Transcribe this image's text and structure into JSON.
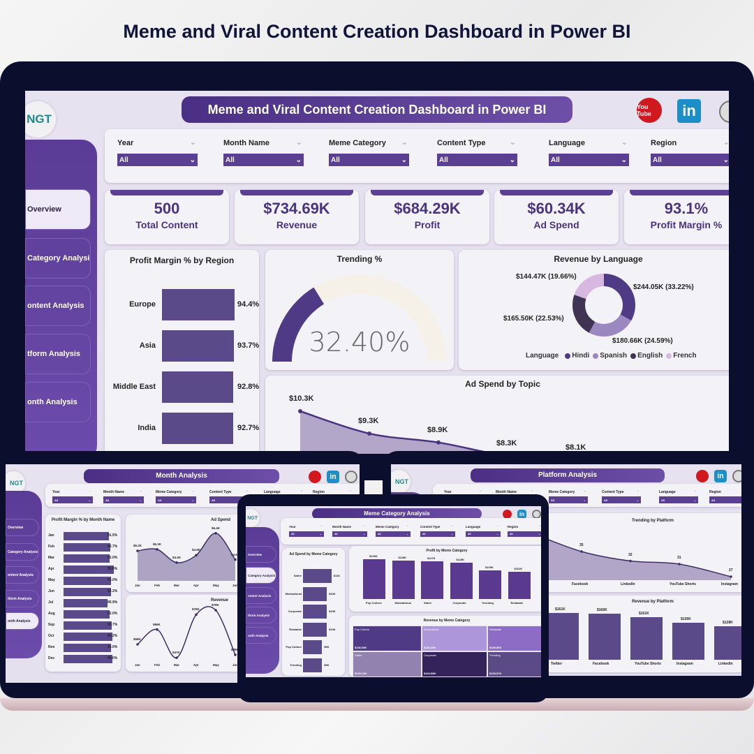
{
  "title": "Meme and Viral Content Creation Dashboard in Power BI",
  "colors": {
    "primary": "#5a3f93",
    "bar": "#5b4a8a",
    "dark": "#10143a",
    "youtube": "#d0181f",
    "linkedin": "#1d8fc8"
  },
  "common": {
    "logo": "NGT",
    "youtube": "You Tube",
    "linkedin": "in",
    "all": "All"
  },
  "filters": [
    "Year",
    "Month Name",
    "Meme Category",
    "Content Type",
    "Language",
    "Region"
  ],
  "main": {
    "header": "Meme and Viral Content Creation Dashboard in Power BI",
    "nav": [
      "Overview",
      "Category Analysis",
      "ontent Analysis",
      "tform Analysis",
      "onth Analysis"
    ],
    "kpis": [
      {
        "value": "500",
        "label": "Total Content"
      },
      {
        "value": "$734.69K",
        "label": "Revenue"
      },
      {
        "value": "$684.29K",
        "label": "Profit"
      },
      {
        "value": "$60.34K",
        "label": "Ad Spend"
      },
      {
        "value": "93.1%",
        "label": "Profit Margin %"
      }
    ],
    "profit_by_region": {
      "title": "Profit Margin % by Region",
      "rows": [
        {
          "label": "Europe",
          "value": 94.4,
          "text": "94.4%"
        },
        {
          "label": "Asia",
          "value": 93.7,
          "text": "93.7%"
        },
        {
          "label": "Middle East",
          "value": 92.8,
          "text": "92.8%"
        },
        {
          "label": "India",
          "value": 92.7,
          "text": "92.7%"
        }
      ]
    },
    "trending": {
      "title": "Trending %",
      "value": 32.4,
      "text": "32.40%"
    },
    "revenue_by_language": {
      "title": "Revenue by Language",
      "legend_title": "Language",
      "slices": [
        {
          "name": "Hindi",
          "pct": 33.22,
          "text": "$244.05K (33.22%)",
          "color": "#4f3a85"
        },
        {
          "name": "Spanish",
          "pct": 24.59,
          "text": "$180.66K (24.59%)",
          "color": "#9b88c0"
        },
        {
          "name": "English",
          "pct": 22.53,
          "text": "$165.50K (22.53%)",
          "color": "#3f3552"
        },
        {
          "name": "French",
          "pct": 19.66,
          "text": "$144.47K (19.66%)",
          "color": "#d6b8e0"
        }
      ]
    },
    "ad_spend_by_topic": {
      "title": "Ad Spend by Topic",
      "values": [
        10.3,
        9.3,
        8.9,
        8.3,
        8.1
      ],
      "labels": [
        "$10.3K",
        "$9.3K",
        "$8.9K",
        "$8.3K",
        "$8.1K"
      ]
    }
  },
  "month_screen": {
    "header": "Month Analysis",
    "nav": [
      "Overview",
      "Category Analysis",
      "ontent Analysis",
      "tform Analysis",
      "onth Analysis"
    ],
    "pm_by_month": {
      "title": "Profit Margin % by Month Name",
      "months": [
        "Jan",
        "Feb",
        "Mar",
        "Apr",
        "May",
        "Jun",
        "Jul",
        "Aug",
        "Sep",
        "Oct",
        "Nov",
        "Dec"
      ],
      "values": [
        91.5,
        92.7,
        92.0,
        95.0,
        93.0,
        93.2,
        90.9,
        92.0,
        93.7,
        94.2,
        93.0,
        94.0
      ],
      "labels": [
        "91.5%",
        "92.7%",
        "92.0%",
        "95.0%",
        "93.0%",
        "93.2%",
        "90.9%",
        "92.0%",
        "93.7%",
        "94.2%",
        "93.0%",
        "94.0%"
      ]
    },
    "ad_spend": {
      "title": "Ad Spend",
      "months": [
        "Jan",
        "Feb",
        "Mar",
        "Apr",
        "May",
        "Jun"
      ],
      "values": [
        5.2,
        5.3,
        4.4,
        4.9,
        6.4,
        4.6
      ],
      "labels": [
        "$5.2K",
        "$5.3K",
        "$4.4K",
        "$4.9K",
        "$6.4K",
        "$4.6"
      ]
    },
    "revenue": {
      "title": "Revenue",
      "months": [
        "Jan",
        "Feb",
        "Mar",
        "Apr",
        "May",
        "Jun"
      ],
      "values": [
        56,
        66,
        47,
        76,
        79,
        49
      ],
      "labels": [
        "$56K",
        "$66K",
        "$47K",
        "$76K",
        "$79K",
        "$49K"
      ]
    }
  },
  "category_screen": {
    "header": "Meme Category Analysis",
    "nav": [
      "Overview",
      "Category Analysis",
      "ontent Analysis",
      "tform Analysis",
      "onth Analysis"
    ],
    "ad_spend": {
      "title": "Ad Spend by Meme Category",
      "categories": [
        "Satire",
        "Motivational",
        "Corporate",
        "Relatable",
        "Pop Culture",
        "Trending"
      ],
      "values": [
        11,
        10,
        10,
        10,
        9,
        9
      ],
      "labels": [
        "$11K",
        "$10K",
        "$10K",
        "$10K",
        "$9K",
        "$9K"
      ]
    },
    "profit": {
      "title": "Profit by Meme Category",
      "categories": [
        "Pop Culture",
        "Motivational",
        "Satire",
        "Corporate",
        "Trending",
        "Relatable"
      ],
      "values": [
        120,
        118,
        117,
        115,
        103,
        101
      ],
      "labels": [
        "$120K",
        "$118K",
        "$117K",
        "$115K",
        "$103K",
        "$101K"
      ]
    },
    "revenue": {
      "title": "Revenue by Meme Category",
      "tiles": [
        {
          "name": "Pop Culture",
          "text": "$136.68K",
          "color": "#4f3a85"
        },
        {
          "name": "Motivational",
          "text": "$126.39K",
          "color": "#ad96da"
        },
        {
          "name": "Relatable",
          "text": "$109.86K",
          "color": "#8d6cc6"
        },
        {
          "name": "Satire",
          "text": "$129.13K",
          "color": "#9182b0"
        },
        {
          "name": "Corporate",
          "text": "$134.58K",
          "color": "#33235a"
        },
        {
          "name": "Trending",
          "text": "$108.87K",
          "color": "#5a4a86"
        }
      ]
    }
  },
  "platform_screen": {
    "header": "Platform Analysis",
    "trending": {
      "title": "Trending by Platform",
      "categories": [
        "Facebook",
        "LinkedIn",
        "YouTube Shorts",
        "Instagram"
      ],
      "values": [
        35,
        32,
        31,
        27
      ]
    },
    "revenue": {
      "title": "Revenue by Platform",
      "categories": [
        "Twitter",
        "Facebook",
        "YouTube Shorts",
        "Instagram",
        "LinkedIn"
      ],
      "values": [
        161,
        160,
        151,
        136,
        128
      ],
      "labels": [
        "$161K",
        "$160K",
        "$151K",
        "$136K",
        "$128K"
      ]
    }
  }
}
